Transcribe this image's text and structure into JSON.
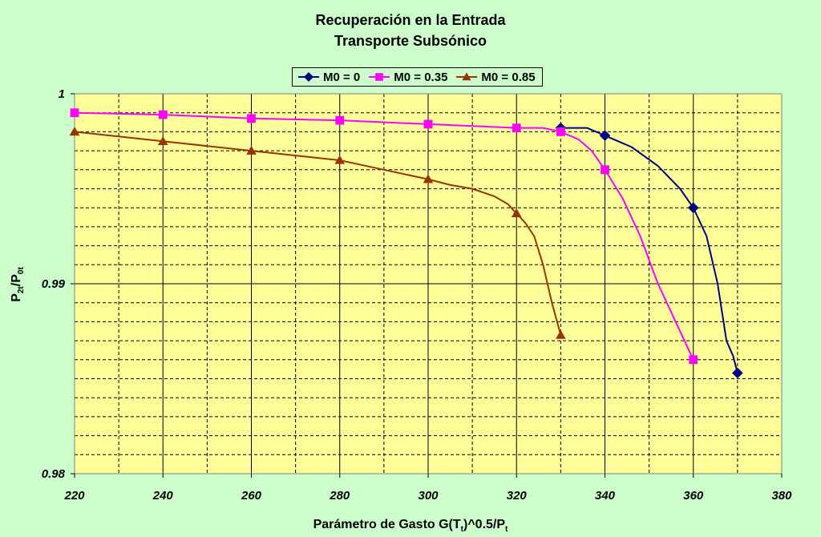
{
  "chart_data": {
    "type": "line",
    "title_line1": "Recuperación en la Entrada",
    "title_line2": "Transporte Subsónico",
    "xlabel": {
      "pre": "Parámetro de Gasto G(T",
      "sub1": "t",
      "mid": ")^0.5/P",
      "sub2": "t"
    },
    "ylabel": {
      "pre": "P",
      "sub1": "2t",
      "mid": "/P",
      "sub2": "0t"
    },
    "xlim": [
      220,
      380
    ],
    "ylim": [
      0.98,
      1.0
    ],
    "x_ticks": [
      220,
      240,
      260,
      280,
      300,
      320,
      340,
      360,
      380
    ],
    "y_ticks": [
      {
        "value": 0.98,
        "label": "0.98"
      },
      {
        "value": 0.99,
        "label": "0.99"
      },
      {
        "value": 1.0,
        "label": "1"
      }
    ],
    "grid": true,
    "legend_position": "top-center",
    "colors": {
      "background": "#ccffcc",
      "plot_area": "#ffff99",
      "major_grid": "#000000",
      "minor_grid": "#000000"
    },
    "series": [
      {
        "name": "M0 = 0",
        "color": "#000080",
        "marker": "diamond",
        "x": [
          330,
          340,
          360,
          370
        ],
        "y": [
          0.9982,
          0.9978,
          0.994,
          0.9853
        ],
        "curve": [
          [
            330,
            0.9982
          ],
          [
            336,
            0.9982
          ],
          [
            340,
            0.9978
          ],
          [
            346,
            0.9972
          ],
          [
            352,
            0.9962
          ],
          [
            357,
            0.995
          ],
          [
            360,
            0.994
          ],
          [
            363,
            0.9925
          ],
          [
            365.5,
            0.99
          ],
          [
            367.5,
            0.987
          ],
          [
            369,
            0.9862
          ],
          [
            370,
            0.9853
          ]
        ]
      },
      {
        "name": "M0 = 0.35",
        "color": "#ff00ff",
        "marker": "square",
        "x": [
          220,
          240,
          260,
          280,
          300,
          320,
          330,
          340,
          360
        ],
        "y": [
          0.999,
          0.9989,
          0.9987,
          0.9986,
          0.9984,
          0.9982,
          0.998,
          0.996,
          0.986
        ],
        "curve": [
          [
            220,
            0.999
          ],
          [
            240,
            0.9989
          ],
          [
            260,
            0.9987
          ],
          [
            280,
            0.9986
          ],
          [
            300,
            0.9984
          ],
          [
            320,
            0.9982
          ],
          [
            326,
            0.9982
          ],
          [
            330,
            0.998
          ],
          [
            334,
            0.9976
          ],
          [
            337,
            0.997
          ],
          [
            340,
            0.996
          ],
          [
            344,
            0.9945
          ],
          [
            348,
            0.9925
          ],
          [
            352,
            0.99
          ],
          [
            356,
            0.988
          ],
          [
            360,
            0.986
          ]
        ]
      },
      {
        "name": "M0 = 0.85",
        "color": "#993300",
        "marker": "triangle",
        "x": [
          220,
          240,
          260,
          280,
          300,
          320,
          330
        ],
        "y": [
          0.998,
          0.9975,
          0.997,
          0.9965,
          0.9955,
          0.9937,
          0.9873
        ],
        "curve": [
          [
            220,
            0.998
          ],
          [
            240,
            0.9975
          ],
          [
            260,
            0.997
          ],
          [
            280,
            0.9965
          ],
          [
            290,
            0.996
          ],
          [
            300,
            0.9955
          ],
          [
            305,
            0.9952
          ],
          [
            310,
            0.995
          ],
          [
            315,
            0.9946
          ],
          [
            318,
            0.9942
          ],
          [
            320,
            0.9937
          ],
          [
            322,
            0.9932
          ],
          [
            324,
            0.9925
          ],
          [
            326,
            0.991
          ],
          [
            328,
            0.989
          ],
          [
            330,
            0.9873
          ]
        ]
      }
    ]
  }
}
